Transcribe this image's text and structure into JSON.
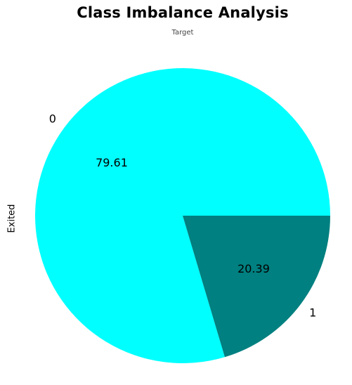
{
  "chart_data": {
    "type": "pie",
    "title": "Class Imbalance Analysis",
    "subtitle": "Target",
    "ylabel": "Exited",
    "slices": [
      {
        "label": "0",
        "value": 79.61,
        "display": "79.61",
        "color": "#00FFFF"
      },
      {
        "label": "1",
        "value": 20.39,
        "display": "20.39",
        "color": "#008080"
      }
    ],
    "start_angle": 0,
    "direction": "counterclockwise",
    "legend": "none"
  }
}
